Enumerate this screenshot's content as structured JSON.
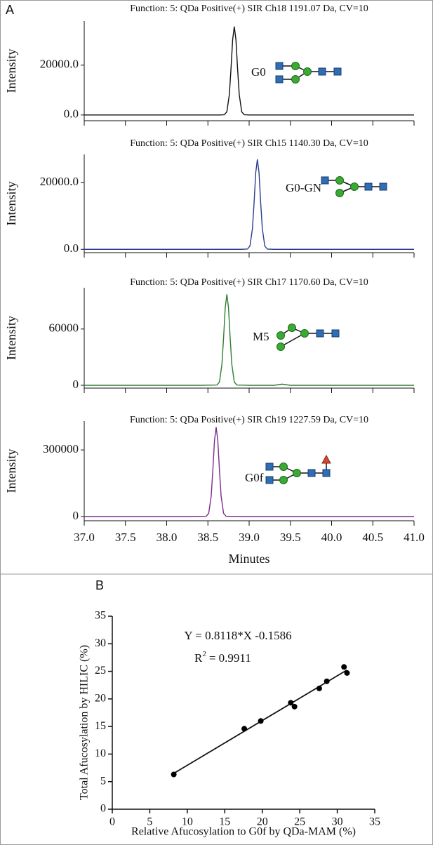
{
  "panel_labels": [
    "A",
    "B"
  ],
  "chart_data": [
    {
      "type": "line",
      "title": "Function: 5: QDa Positive(+) SIR Ch18 1191.07 Da, CV=10",
      "y_label": "Intensity",
      "annotation": "G0",
      "color": "#111111",
      "xlim": [
        37.0,
        41.0
      ],
      "ylim": [
        -2300,
        37700
      ],
      "yticks": [
        {
          "value": 0,
          "label": "0.0"
        },
        {
          "value": 20000,
          "label": "20000.0"
        }
      ],
      "x": [
        37.0,
        37.5,
        38.0,
        38.5,
        38.65,
        38.7,
        38.73,
        38.76,
        38.78,
        38.8,
        38.82,
        38.84,
        38.86,
        38.88,
        38.91,
        38.94,
        39.0,
        39.5,
        40.0,
        40.5,
        41.0
      ],
      "values": [
        0,
        0,
        0,
        0,
        0,
        100,
        1300,
        8200,
        18500,
        30200,
        35500,
        30200,
        18500,
        8200,
        1300,
        100,
        0,
        0,
        0,
        0,
        0
      ]
    },
    {
      "type": "line",
      "title": "Function: 5: QDa Positive(+) SIR Ch15 1140.30 Da, CV=10",
      "y_label": "Intensity",
      "annotation": "G0-GN",
      "color": "#2a3f8f",
      "xlim": [
        37.0,
        41.0
      ],
      "ylim": [
        -1000,
        28500
      ],
      "yticks": [
        {
          "value": 0,
          "label": "0.0"
        },
        {
          "value": 20000,
          "label": "20000.0"
        }
      ],
      "x": [
        37.0,
        37.5,
        38.0,
        38.5,
        38.9,
        38.98,
        39.01,
        39.04,
        39.06,
        39.08,
        39.1,
        39.12,
        39.14,
        39.16,
        39.19,
        39.22,
        39.3,
        39.5,
        40.0,
        40.5,
        41.0
      ],
      "values": [
        0,
        0,
        0,
        0,
        0,
        80,
        1000,
        6200,
        14000,
        23000,
        27000,
        23000,
        14000,
        6200,
        1000,
        80,
        0,
        0,
        0,
        0,
        0
      ]
    },
    {
      "type": "line",
      "title": "Function: 5: QDa Positive(+) SIR Ch17 1170.60 Da, CV=10",
      "y_label": "Intensity",
      "annotation": "M5",
      "color": "#2e7d32",
      "xlim": [
        37.0,
        41.0
      ],
      "ylim": [
        -3000,
        104000
      ],
      "yticks": [
        0,
        60000
      ],
      "x": [
        37.0,
        37.5,
        38.0,
        38.4,
        38.61,
        38.64,
        38.67,
        38.69,
        38.71,
        38.73,
        38.75,
        38.77,
        38.79,
        38.82,
        38.85,
        39.0,
        39.3,
        39.4,
        39.5,
        40.0,
        40.5,
        41.0
      ],
      "values": [
        0,
        0,
        0,
        0,
        300,
        3600,
        22300,
        50400,
        82500,
        97000,
        82500,
        50400,
        22300,
        3600,
        300,
        0,
        0,
        1200,
        0,
        0,
        0,
        0
      ]
    },
    {
      "type": "line",
      "title": "Function: 5: QDa Positive(+) SIR Ch19 1227.59 Da, CV=10",
      "y_label": "Intensity",
      "annotation": "G0f",
      "color": "#7b2d8e",
      "x_label": "Minutes",
      "xlim": [
        37.0,
        41.0
      ],
      "ylim": [
        -19000,
        430000
      ],
      "yticks": [
        0,
        300000
      ],
      "xticks": [
        {
          "value": 37.0,
          "label": "37.0"
        },
        {
          "value": 37.5,
          "label": "37.5"
        },
        {
          "value": 38.0,
          "label": "38.0"
        },
        {
          "value": 38.5,
          "label": "38.5"
        },
        {
          "value": 39.0,
          "label": "39.0"
        },
        {
          "value": 39.5,
          "label": "39.5"
        },
        {
          "value": 40.0,
          "label": "40.0"
        },
        {
          "value": 40.5,
          "label": "40.5"
        },
        {
          "value": 41.0,
          "label": "41.0"
        }
      ],
      "x": [
        37.0,
        37.5,
        38.0,
        38.3,
        38.48,
        38.51,
        38.54,
        38.56,
        38.58,
        38.6,
        38.62,
        38.64,
        38.66,
        38.69,
        38.72,
        38.9,
        39.5,
        40.0,
        40.5,
        41.0
      ],
      "values": [
        0,
        0,
        0,
        0,
        1200,
        14900,
        92700,
        209600,
        342600,
        403000,
        342600,
        209600,
        92700,
        14900,
        1200,
        0,
        0,
        0,
        0,
        0
      ]
    },
    {
      "type": "scatter",
      "x_label": "Relative Afucosylation to G0f by QDa-MAM (%)",
      "y_label": "Total Afucosylation by HILIC (%)",
      "equation": "Y = 0.8118*X -0.1586",
      "r2_label": "R",
      "r2_sup": "2",
      "r2_value": "= 0.9911",
      "color": "#000000",
      "xlim": [
        0,
        35
      ],
      "ylim": [
        0,
        35
      ],
      "xticks": [
        0,
        5,
        10,
        15,
        20,
        25,
        30,
        35
      ],
      "yticks": [
        0,
        5,
        10,
        15,
        20,
        25,
        30,
        35
      ],
      "x": [
        8.2,
        17.6,
        19.8,
        23.8,
        24.3,
        27.6,
        28.6,
        30.9,
        31.3
      ],
      "values": [
        6.3,
        14.6,
        16.0,
        19.3,
        18.6,
        21.9,
        23.2,
        25.8,
        24.7
      ],
      "fit_x": [
        8.2,
        31.3
      ],
      "fit_values": [
        6.5,
        25.25
      ]
    }
  ]
}
